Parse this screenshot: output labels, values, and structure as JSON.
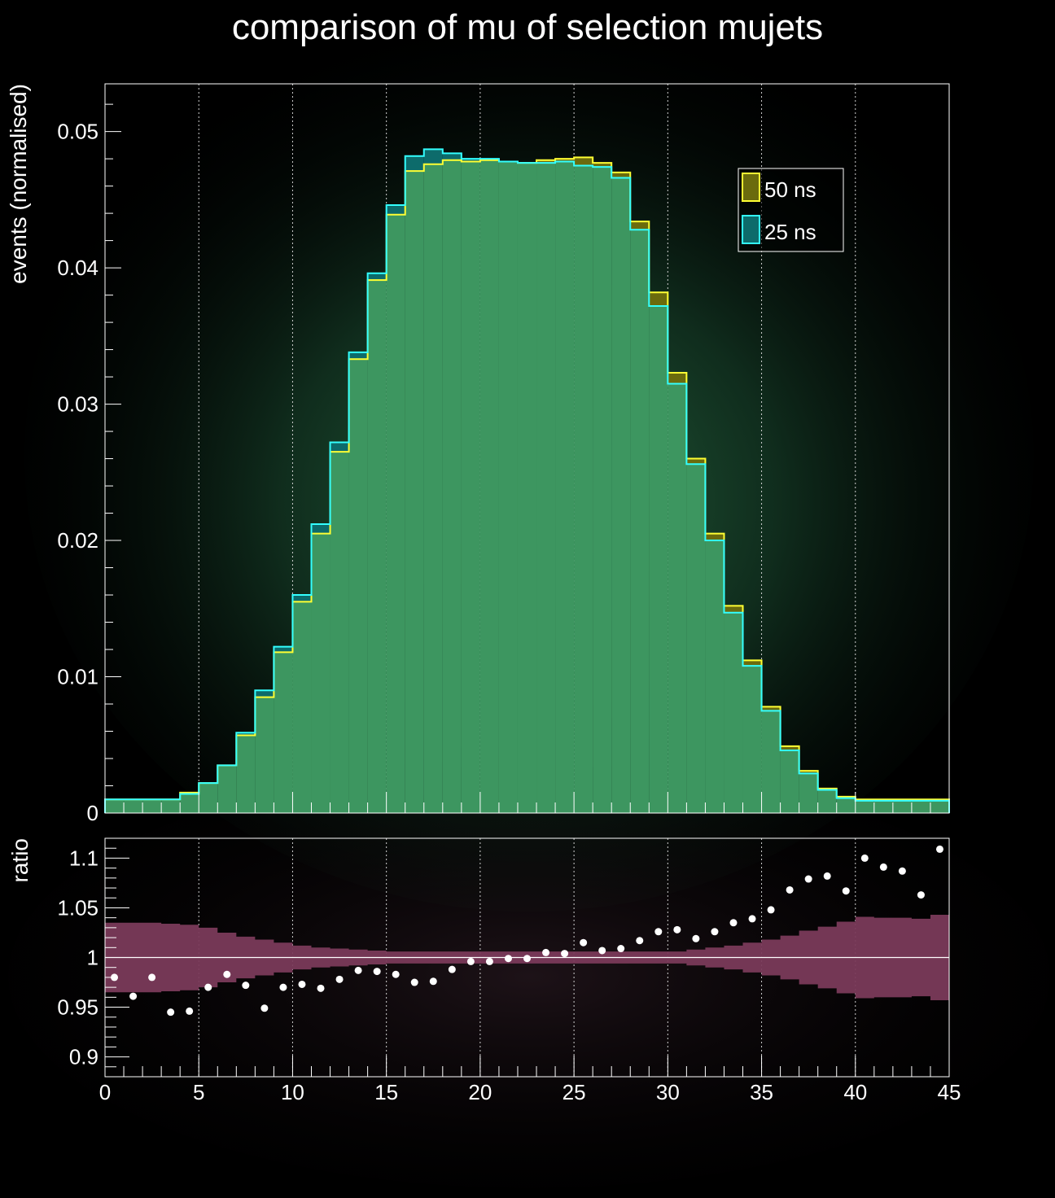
{
  "title": "comparison of mu of selection mujets",
  "colors": {
    "background": "#000000",
    "fill_50ns": "#6b6b0d",
    "line_50ns": "#ffff33",
    "fill_25ns": "#0d6b6b",
    "line_25ns": "#33ffff",
    "overlap": "#3d9660",
    "band": "#7a3a5a",
    "points": "#ffffff"
  },
  "chart_data": [
    {
      "type": "histogram",
      "ylabel": "events (normalised)",
      "xlim": [
        0,
        45
      ],
      "ylim": [
        0,
        0.0535
      ],
      "bin_edges_start": 0,
      "bin_width": 1,
      "yticks": [
        0,
        0.01,
        0.02,
        0.03,
        0.04,
        0.05
      ],
      "ytick_labels": [
        "0",
        "0.01",
        "0.02",
        "0.03",
        "0.04",
        "0.05"
      ],
      "grid_x": true,
      "legend": {
        "placement": "top-right",
        "entries": [
          "50 ns",
          "25 ns"
        ]
      },
      "series": [
        {
          "name": "50 ns",
          "values": [
            0.001,
            0.001,
            0.001,
            0.001,
            0.0015,
            0.0022,
            0.0035,
            0.0057,
            0.0085,
            0.0118,
            0.0155,
            0.0205,
            0.0265,
            0.0333,
            0.0391,
            0.0439,
            0.0471,
            0.0476,
            0.0479,
            0.0478,
            0.0479,
            0.0478,
            0.0477,
            0.0479,
            0.048,
            0.0481,
            0.0477,
            0.047,
            0.0434,
            0.0382,
            0.0323,
            0.026,
            0.0205,
            0.0152,
            0.0112,
            0.0078,
            0.0049,
            0.0031,
            0.0018,
            0.0012,
            0.001,
            0.001,
            0.001,
            0.001,
            0.001
          ]
        },
        {
          "name": "25 ns",
          "values": [
            0.001,
            0.001,
            0.001,
            0.001,
            0.0014,
            0.0022,
            0.0035,
            0.0059,
            0.009,
            0.0122,
            0.016,
            0.0212,
            0.0272,
            0.0338,
            0.0396,
            0.0446,
            0.0482,
            0.0487,
            0.0484,
            0.048,
            0.048,
            0.0478,
            0.0477,
            0.0477,
            0.0478,
            0.0475,
            0.0474,
            0.0466,
            0.0428,
            0.0372,
            0.0315,
            0.0256,
            0.02,
            0.0147,
            0.0108,
            0.0075,
            0.0046,
            0.0029,
            0.0017,
            0.0011,
            0.0009,
            0.0009,
            0.0009,
            0.0009,
            0.0009
          ]
        }
      ]
    },
    {
      "type": "scatter",
      "ylabel": "ratio",
      "xlim": [
        0,
        45
      ],
      "ylim": [
        0.88,
        1.12
      ],
      "yticks": [
        0.9,
        0.95,
        1,
        1.05,
        1.1
      ],
      "ytick_labels": [
        "0.9",
        "0.95",
        "1",
        "1.05",
        "1.1"
      ],
      "xticks": [
        0,
        5,
        10,
        15,
        20,
        25,
        30,
        35,
        40,
        45
      ],
      "xtick_labels": [
        "0",
        "5",
        "10",
        "15",
        "20",
        "25",
        "30",
        "35",
        "40",
        "45"
      ],
      "grid_x": true,
      "reference_line": 1,
      "x": [
        0.5,
        1.5,
        2.5,
        3.5,
        4.5,
        5.5,
        6.5,
        7.5,
        8.5,
        9.5,
        10.5,
        11.5,
        12.5,
        13.5,
        14.5,
        15.5,
        16.5,
        17.5,
        18.5,
        19.5,
        20.5,
        21.5,
        22.5,
        23.5,
        24.5,
        25.5,
        26.5,
        27.5,
        28.5,
        29.5,
        30.5,
        31.5,
        32.5,
        33.5,
        34.5,
        35.5,
        36.5,
        37.5,
        38.5,
        39.5,
        40.5,
        41.5,
        42.5,
        43.5,
        44.5
      ],
      "ratio": [
        0.98,
        0.961,
        0.98,
        0.945,
        0.946,
        0.97,
        0.983,
        0.972,
        0.949,
        0.97,
        0.973,
        0.969,
        0.978,
        0.987,
        0.986,
        0.983,
        0.975,
        0.976,
        0.988,
        0.996,
        0.996,
        0.999,
        0.999,
        1.005,
        1.004,
        1.015,
        1.007,
        1.009,
        1.017,
        1.026,
        1.028,
        1.019,
        1.026,
        1.035,
        1.039,
        1.048,
        1.068,
        1.079,
        1.082,
        1.067,
        1.1,
        1.091,
        1.087,
        1.063,
        1.109
      ],
      "band_halfwidth": [
        0.035,
        0.035,
        0.035,
        0.034,
        0.033,
        0.03,
        0.025,
        0.021,
        0.018,
        0.015,
        0.012,
        0.01,
        0.009,
        0.008,
        0.007,
        0.006,
        0.006,
        0.006,
        0.006,
        0.006,
        0.006,
        0.006,
        0.006,
        0.006,
        0.006,
        0.006,
        0.006,
        0.006,
        0.006,
        0.006,
        0.006,
        0.008,
        0.01,
        0.012,
        0.015,
        0.018,
        0.022,
        0.027,
        0.031,
        0.036,
        0.041,
        0.04,
        0.04,
        0.039,
        0.043
      ]
    }
  ]
}
